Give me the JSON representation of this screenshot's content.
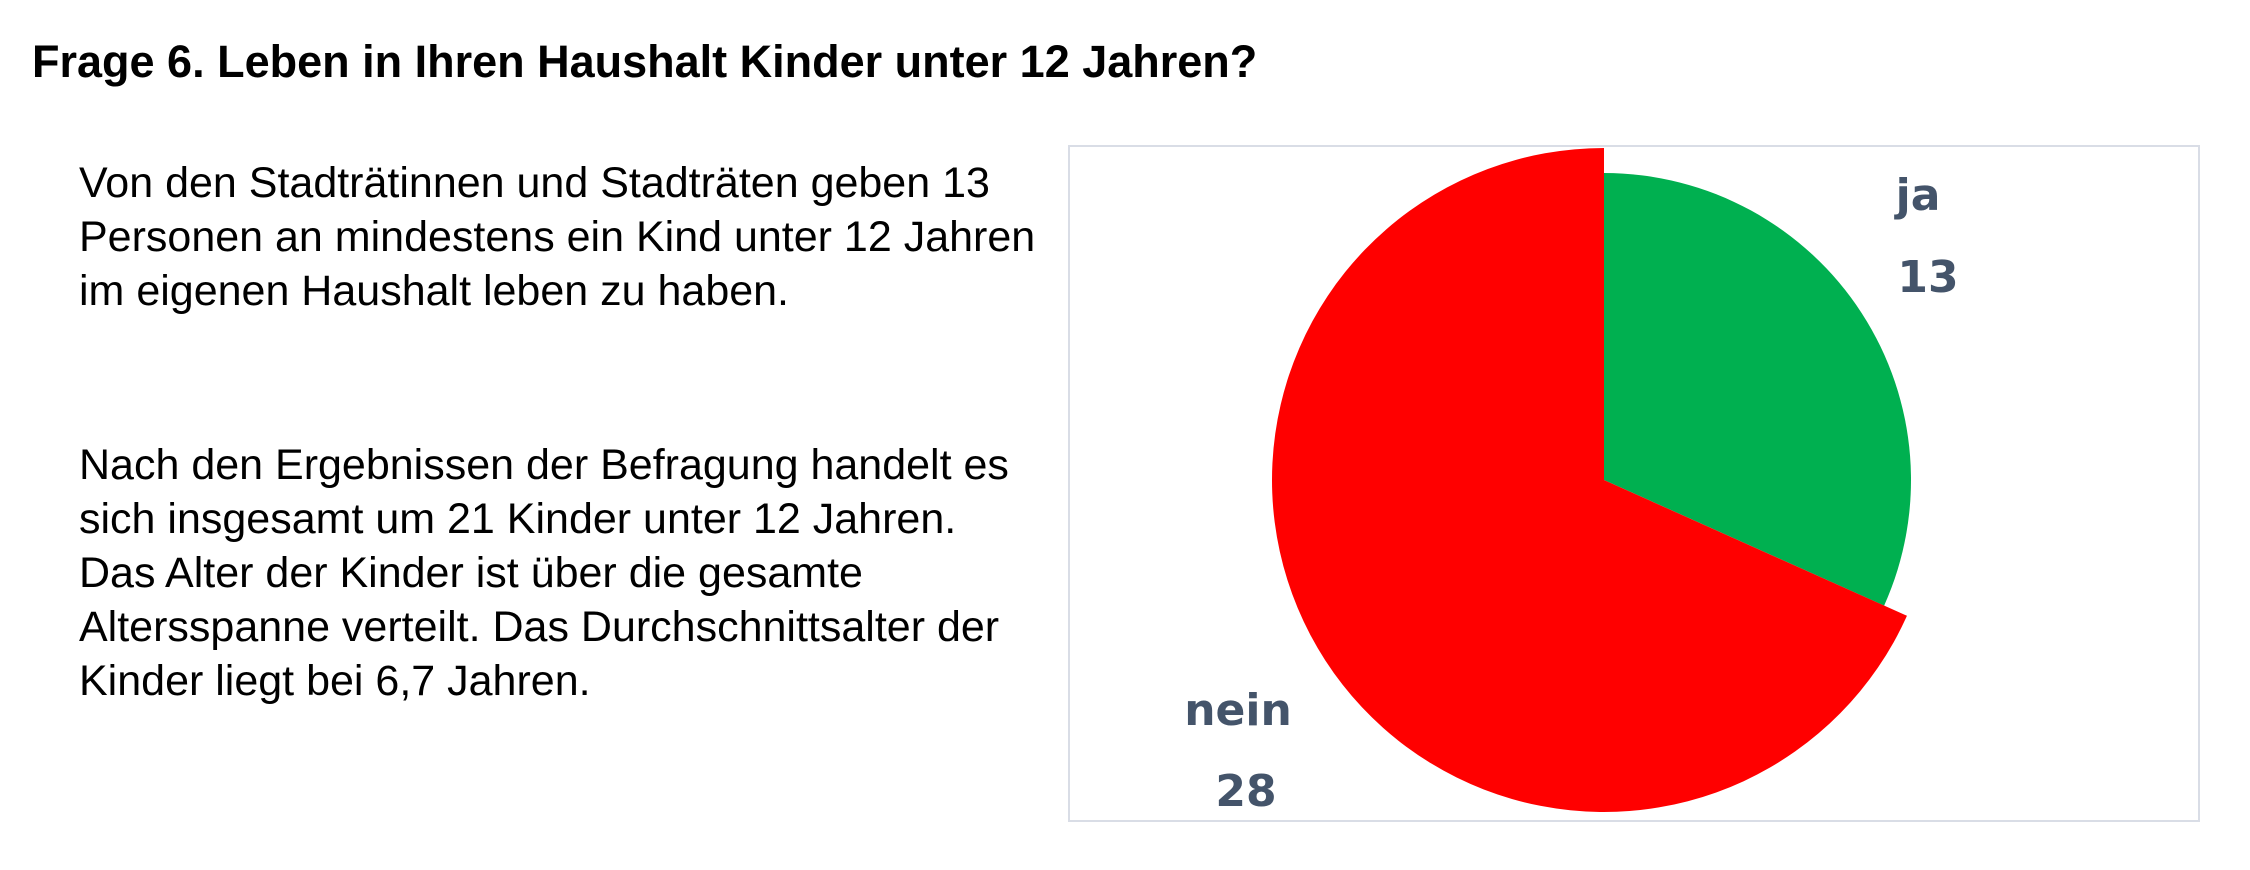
{
  "title": "Frage 6. Leben in Ihren Haushalt Kinder unter 12 Jahren?",
  "paragraphs": [
    "Von den Stadträtinnen und Stadträten geben 13 Personen an mindestens ein Kind unter 12 Jahren im eigenen Haushalt leben zu haben.",
    "Nach den Ergebnissen der Befragung handelt es sich insgesamt um 21 Kinder unter 12 Jahren. Das Alter der Kinder ist über die gesamte Altersspanne verteilt. Das Durchschnittsalter der Kinder liegt bei 6,7 Jahren."
  ],
  "chart_data": {
    "type": "pie",
    "title": "",
    "slices": [
      {
        "label": "ja",
        "value": 13,
        "color": "#00B050"
      },
      {
        "label": "nein",
        "value": 28,
        "color": "#FF0000"
      }
    ],
    "start": "12 o'clock, clockwise",
    "label_color": "#44546A"
  }
}
